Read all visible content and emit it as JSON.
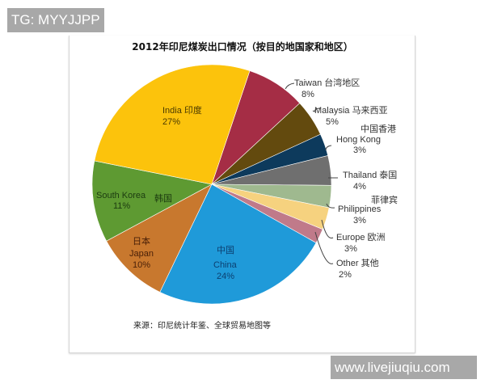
{
  "watermark_top": "TG: MYYJJPP",
  "watermark_bottom": "www.livejiuqiu.com",
  "chart_data": {
    "type": "pie",
    "title": "2012年印尼煤炭出口情况（按目的地国家和地区）",
    "source": "来源：印尼统计年鉴、全球贸易地图等",
    "start_angle_deg": 18.5,
    "direction": "clockwise",
    "slices": [
      {
        "name_en": "Taiwan",
        "name_zh": "台湾地区",
        "value": 8,
        "label": "8%",
        "color": "#a52d45"
      },
      {
        "name_en": "Malaysia",
        "name_zh": "马来西亚",
        "value": 5,
        "label": "5%",
        "color": "#634a0e"
      },
      {
        "name_en": "Hong Kong",
        "name_zh": "中国香港",
        "value": 3,
        "label": "3%",
        "color": "#0d3a5c"
      },
      {
        "name_en": "Thailand",
        "name_zh": "泰国",
        "value": 4,
        "label": "4%",
        "color": "#6f6f6f"
      },
      {
        "name_en": "Philippines",
        "name_zh": "菲律宾",
        "value": 3,
        "label": "3%",
        "color": "#9fb98f"
      },
      {
        "name_en": "Europe",
        "name_zh": "欧洲",
        "value": 3,
        "label": "3%",
        "color": "#f6d27f"
      },
      {
        "name_en": "Other",
        "name_zh": "其他",
        "value": 2,
        "label": "2%",
        "color": "#c07a8a"
      },
      {
        "name_en": "China",
        "name_zh": "中国",
        "value": 24,
        "label": "24%",
        "color": "#1f9ad9"
      },
      {
        "name_en": "Japan",
        "name_zh": "日本",
        "value": 10,
        "label": "10%",
        "color": "#c8782e"
      },
      {
        "name_en": "South Korea",
        "name_zh": "韩国",
        "value": 11,
        "label": "11%",
        "color": "#5e9a32"
      },
      {
        "name_en": "India",
        "name_zh": "印度",
        "value": 27,
        "label": "27%",
        "color": "#fcc30c"
      }
    ]
  },
  "labels": {
    "india": {
      "line1": "India 印度",
      "line2": "27%"
    },
    "taiwan": {
      "line1": "Taiwan 台湾地区",
      "line2": "8%"
    },
    "malaysia": {
      "line1": "Malaysia 马来西亚",
      "line2": "5%"
    },
    "hongkong": {
      "zh": "中国香港",
      "line1": "Hong  Kong",
      "line2": "3%"
    },
    "thailand": {
      "line1": "Thailand 泰国",
      "line2": "4%"
    },
    "philippines": {
      "zh": "菲律宾",
      "line1": "Philippines",
      "line2": "3%"
    },
    "europe": {
      "line1": "Europe 欧洲",
      "line2": "3%"
    },
    "other": {
      "line1": "Other  其他",
      "line2": "2%"
    },
    "china": {
      "zh": "中国",
      "line1": "China",
      "line2": "24%"
    },
    "japan": {
      "zh": "日本",
      "line1": "Japan",
      "line2": "10%"
    },
    "korea": {
      "line1": "South Korea",
      "zh": "韩国",
      "line2": "11%"
    }
  }
}
